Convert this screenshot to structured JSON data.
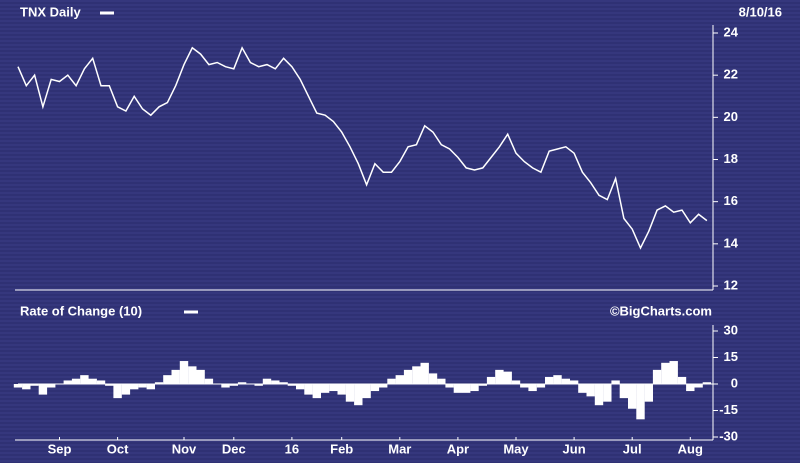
{
  "chart_data": [
    {
      "type": "line",
      "title": "TNX Daily",
      "date": "8/10/16",
      "color": "#ffffff",
      "values": [
        22.4,
        21.5,
        22.0,
        20.5,
        21.8,
        21.7,
        22.0,
        21.5,
        22.3,
        22.8,
        21.5,
        21.5,
        20.5,
        20.3,
        21.0,
        20.4,
        20.1,
        20.5,
        20.7,
        21.5,
        22.5,
        23.3,
        23.0,
        22.5,
        22.6,
        22.4,
        22.3,
        23.3,
        22.6,
        22.4,
        22.5,
        22.3,
        22.8,
        22.4,
        21.8,
        21.0,
        20.2,
        20.1,
        19.8,
        19.3,
        18.6,
        17.8,
        16.8,
        17.8,
        17.4,
        17.4,
        17.9,
        18.6,
        18.7,
        19.6,
        19.3,
        18.7,
        18.5,
        18.1,
        17.6,
        17.5,
        17.6,
        18.1,
        18.6,
        19.2,
        18.3,
        17.9,
        17.6,
        17.4,
        18.4,
        18.5,
        18.6,
        18.3,
        17.4,
        16.9,
        16.3,
        16.1,
        17.1,
        15.2,
        14.7,
        13.8,
        14.6,
        15.6,
        15.8,
        15.5,
        15.6,
        15.0,
        15.4,
        15.1
      ],
      "ylim": [
        12,
        24
      ],
      "yticks": [
        12,
        14,
        16,
        18,
        20,
        22,
        24
      ]
    },
    {
      "type": "bar",
      "title": "Rate of Change (10)",
      "source": "©BigCharts.com",
      "color": "#ffffff",
      "categories": [
        null,
        null,
        null,
        null,
        null,
        "Sep",
        null,
        null,
        null,
        null,
        null,
        null,
        "Oct",
        null,
        null,
        null,
        null,
        null,
        null,
        null,
        "Nov",
        null,
        null,
        null,
        null,
        null,
        "Dec",
        null,
        null,
        null,
        null,
        null,
        null,
        "16",
        null,
        null,
        null,
        null,
        null,
        "Feb",
        null,
        null,
        null,
        null,
        null,
        null,
        "Mar",
        null,
        null,
        null,
        null,
        null,
        null,
        "Apr",
        null,
        null,
        null,
        null,
        null,
        null,
        "May",
        null,
        null,
        null,
        null,
        null,
        null,
        "Jun",
        null,
        null,
        null,
        null,
        null,
        null,
        "Jul",
        null,
        null,
        null,
        null,
        null,
        null,
        "Aug",
        null,
        null
      ],
      "values": [
        -2,
        -3,
        -1,
        -6,
        -2,
        0,
        2,
        3,
        5,
        3,
        2,
        -1,
        -8,
        -6,
        -3,
        -2,
        -3,
        1,
        5,
        8,
        13,
        10,
        8,
        3,
        0,
        -2,
        -1,
        1,
        0,
        -1,
        3,
        2,
        1,
        -1,
        -3,
        -6,
        -8,
        -5,
        -4,
        -6,
        -10,
        -12,
        -8,
        -4,
        -2,
        3,
        5,
        8,
        10,
        12,
        6,
        3,
        -2,
        -5,
        -5,
        -4,
        -1,
        4,
        8,
        7,
        2,
        -2,
        -4,
        -2,
        4,
        5,
        3,
        2,
        -5,
        -7,
        -12,
        -10,
        2,
        -8,
        -14,
        -20,
        -10,
        8,
        12,
        13,
        4,
        -4,
        -2,
        1
      ],
      "ylim": [
        -30,
        30
      ],
      "yticks": [
        -30,
        -15,
        0,
        15,
        30
      ]
    }
  ]
}
